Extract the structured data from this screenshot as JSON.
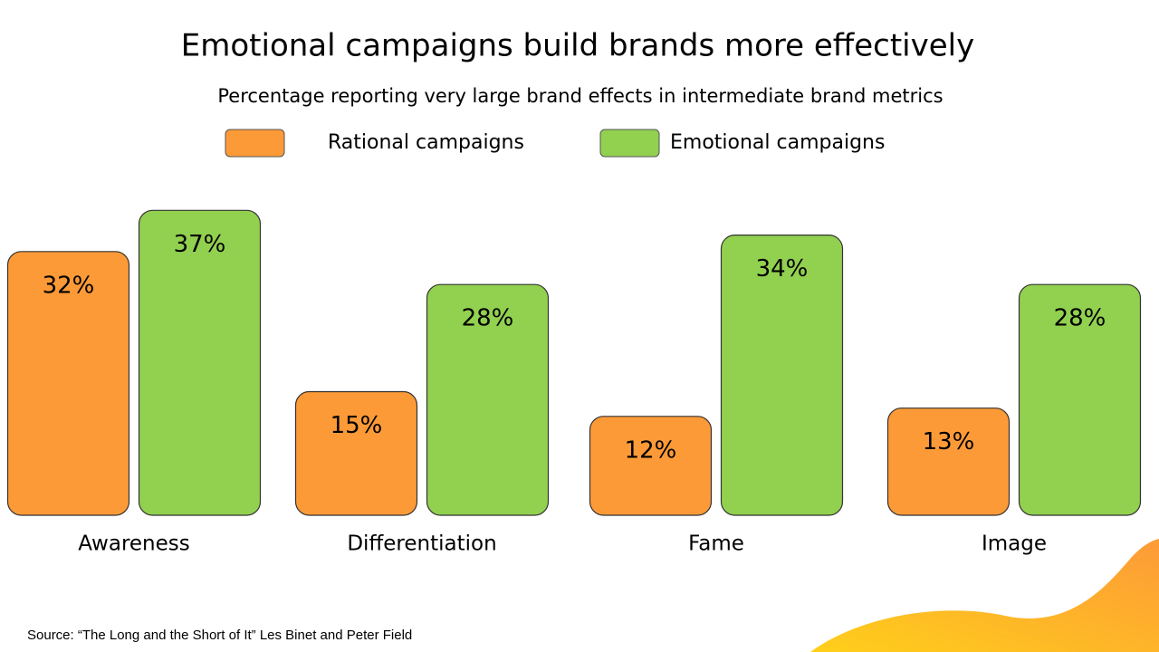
{
  "chart_data": {
    "type": "bar",
    "title": "Emotional campaigns build brands more effectively",
    "subtitle": "Percentage reporting very large brand effects in intermediate brand metrics",
    "categories": [
      "Awareness",
      "Differentiation",
      "Fame",
      "Image"
    ],
    "series": [
      {
        "name": "Rational campaigns",
        "color": "#fd9a38",
        "values": [
          32,
          15,
          12,
          13
        ],
        "value_labels": [
          "32%",
          "15%",
          "12%",
          "13%"
        ]
      },
      {
        "name": "Emotional campaigns",
        "color": "#92d050",
        "values": [
          37,
          28,
          34,
          28
        ],
        "value_labels": [
          "37%",
          "28%",
          "34%",
          "28%"
        ]
      }
    ],
    "source": "Source: “The Long and the Short of It” Les Binet and Peter Field"
  }
}
